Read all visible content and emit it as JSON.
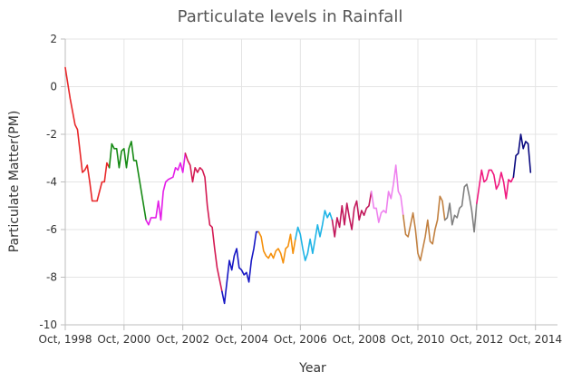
{
  "chart_data": {
    "type": "line",
    "title": "Particulate levels in Rainfall",
    "xlabel": "Year",
    "ylabel": "Particulate Matter(PM)",
    "x_range": [
      "1998-10",
      "2015-07"
    ],
    "ylim": [
      -10,
      2
    ],
    "y_ticks": [
      -10,
      -8,
      -6,
      -4,
      -2,
      0,
      2
    ],
    "x_ticks": [
      {
        "date": "1998-10",
        "label": "Oct, 1998"
      },
      {
        "date": "2000-10",
        "label": "Oct, 2000"
      },
      {
        "date": "2002-10",
        "label": "Oct, 2002"
      },
      {
        "date": "2004-10",
        "label": "Oct, 2004"
      },
      {
        "date": "2006-10",
        "label": "Oct, 2006"
      },
      {
        "date": "2008-10",
        "label": "Oct, 2008"
      },
      {
        "date": "2010-10",
        "label": "Oct, 2010"
      },
      {
        "date": "2012-10",
        "label": "Oct, 2012"
      },
      {
        "date": "2014-10",
        "label": "Oct, 2014"
      }
    ],
    "grid": true,
    "legend": "none",
    "series": [
      {
        "color": "#e8282a",
        "points": [
          [
            "1998-10",
            0.8
          ],
          [
            "1998-12",
            -0.5
          ],
          [
            "1999-02",
            -1.6
          ],
          [
            "1999-03",
            -1.8
          ],
          [
            "1999-05",
            -3.6
          ],
          [
            "1999-06",
            -3.5
          ],
          [
            "1999-07",
            -3.3
          ],
          [
            "1999-08",
            -4.0
          ],
          [
            "1999-09",
            -4.8
          ],
          [
            "1999-11",
            -4.8
          ],
          [
            "2000-01",
            -4.0
          ],
          [
            "2000-02",
            -4.0
          ],
          [
            "2000-03",
            -3.2
          ],
          [
            "2000-04",
            -3.4
          ]
        ]
      },
      {
        "color": "#168a14",
        "points": [
          [
            "2000-04",
            -3.4
          ],
          [
            "2000-05",
            -2.4
          ],
          [
            "2000-06",
            -2.6
          ],
          [
            "2000-07",
            -2.6
          ],
          [
            "2000-08",
            -3.4
          ],
          [
            "2000-09",
            -2.7
          ],
          [
            "2000-10",
            -2.6
          ],
          [
            "2000-11",
            -3.4
          ],
          [
            "2000-12",
            -2.6
          ],
          [
            "2001-01",
            -2.3
          ],
          [
            "2001-02",
            -3.1
          ],
          [
            "2001-03",
            -3.1
          ],
          [
            "2001-07",
            -5.6
          ]
        ]
      },
      {
        "color": "#e41de8",
        "points": [
          [
            "2001-07",
            -5.6
          ],
          [
            "2001-08",
            -5.8
          ],
          [
            "2001-09",
            -5.5
          ],
          [
            "2001-11",
            -5.5
          ],
          [
            "2001-12",
            -4.8
          ],
          [
            "2002-01",
            -5.6
          ],
          [
            "2002-02",
            -4.4
          ],
          [
            "2002-03",
            -4.0
          ],
          [
            "2002-04",
            -3.9
          ],
          [
            "2002-06",
            -3.8
          ],
          [
            "2002-07",
            -3.4
          ],
          [
            "2002-08",
            -3.5
          ],
          [
            "2002-09",
            -3.2
          ],
          [
            "2002-10",
            -3.6
          ],
          [
            "2002-11",
            -2.8
          ]
        ]
      },
      {
        "color": "#d41a53",
        "points": [
          [
            "2002-11",
            -2.8
          ],
          [
            "2002-12",
            -3.1
          ],
          [
            "2003-01",
            -3.3
          ],
          [
            "2003-02",
            -4.0
          ],
          [
            "2003-03",
            -3.4
          ],
          [
            "2003-04",
            -3.6
          ],
          [
            "2003-05",
            -3.4
          ],
          [
            "2003-06",
            -3.5
          ],
          [
            "2003-07",
            -3.8
          ],
          [
            "2003-08",
            -5.0
          ],
          [
            "2003-09",
            -5.8
          ],
          [
            "2003-10",
            -5.9
          ],
          [
            "2003-11",
            -6.8
          ],
          [
            "2003-12",
            -7.6
          ],
          [
            "2004-01",
            -8.1
          ],
          [
            "2004-02",
            -8.6
          ]
        ]
      },
      {
        "color": "#1717c4",
        "points": [
          [
            "2004-02",
            -8.6
          ],
          [
            "2004-03",
            -9.1
          ],
          [
            "2004-04",
            -8.2
          ],
          [
            "2004-05",
            -7.3
          ],
          [
            "2004-06",
            -7.7
          ],
          [
            "2004-07",
            -7.1
          ],
          [
            "2004-08",
            -6.8
          ],
          [
            "2004-09",
            -7.6
          ],
          [
            "2004-10",
            -7.7
          ],
          [
            "2004-11",
            -7.9
          ],
          [
            "2004-12",
            -7.8
          ],
          [
            "2005-01",
            -8.2
          ],
          [
            "2005-02",
            -7.3
          ],
          [
            "2005-03",
            -6.8
          ],
          [
            "2005-04",
            -6.1
          ],
          [
            "2005-05",
            -6.1
          ]
        ]
      },
      {
        "color": "#f5900b",
        "points": [
          [
            "2005-05",
            -6.1
          ],
          [
            "2005-06",
            -6.3
          ],
          [
            "2005-07",
            -6.9
          ],
          [
            "2005-08",
            -7.1
          ],
          [
            "2005-09",
            -7.2
          ],
          [
            "2005-10",
            -7.0
          ],
          [
            "2005-11",
            -7.2
          ],
          [
            "2005-12",
            -6.9
          ],
          [
            "2006-01",
            -6.8
          ],
          [
            "2006-02",
            -7.0
          ],
          [
            "2006-03",
            -7.4
          ],
          [
            "2006-04",
            -6.8
          ],
          [
            "2006-05",
            -6.7
          ],
          [
            "2006-06",
            -6.2
          ],
          [
            "2006-07",
            -7.0
          ],
          [
            "2006-08",
            -6.4
          ]
        ]
      },
      {
        "color": "#1eb4e6",
        "points": [
          [
            "2006-08",
            -6.4
          ],
          [
            "2006-09",
            -5.9
          ],
          [
            "2006-10",
            -6.2
          ],
          [
            "2006-11",
            -6.8
          ],
          [
            "2006-12",
            -7.3
          ],
          [
            "2007-01",
            -7.0
          ],
          [
            "2007-02",
            -6.4
          ],
          [
            "2007-03",
            -7.0
          ],
          [
            "2007-04",
            -6.4
          ],
          [
            "2007-05",
            -5.8
          ],
          [
            "2007-06",
            -6.3
          ],
          [
            "2007-07",
            -5.8
          ],
          [
            "2007-08",
            -5.2
          ],
          [
            "2007-09",
            -5.5
          ],
          [
            "2007-10",
            -5.3
          ],
          [
            "2007-11",
            -5.6
          ]
        ]
      },
      {
        "color": "#c2185b",
        "points": [
          [
            "2007-11",
            -5.6
          ],
          [
            "2007-12",
            -6.3
          ],
          [
            "2008-01",
            -5.5
          ],
          [
            "2008-02",
            -5.9
          ],
          [
            "2008-03",
            -5.0
          ],
          [
            "2008-04",
            -5.8
          ],
          [
            "2008-05",
            -4.9
          ],
          [
            "2008-06",
            -5.5
          ],
          [
            "2008-07",
            -6.0
          ],
          [
            "2008-08",
            -5.1
          ],
          [
            "2008-09",
            -4.8
          ],
          [
            "2008-10",
            -5.6
          ],
          [
            "2008-11",
            -5.2
          ],
          [
            "2008-12",
            -5.4
          ],
          [
            "2009-01",
            -5.1
          ],
          [
            "2009-02",
            -5.0
          ],
          [
            "2009-03",
            -4.4
          ]
        ]
      },
      {
        "color": "#ee82ee",
        "points": [
          [
            "2009-03",
            -4.4
          ],
          [
            "2009-04",
            -5.1
          ],
          [
            "2009-05",
            -5.1
          ],
          [
            "2009-06",
            -5.7
          ],
          [
            "2009-07",
            -5.3
          ],
          [
            "2009-08",
            -5.2
          ],
          [
            "2009-09",
            -5.3
          ],
          [
            "2009-10",
            -4.4
          ],
          [
            "2009-11",
            -4.7
          ],
          [
            "2009-12",
            -4.1
          ],
          [
            "2010-01",
            -3.3
          ],
          [
            "2010-02",
            -4.4
          ],
          [
            "2010-03",
            -4.6
          ],
          [
            "2010-04",
            -5.4
          ]
        ]
      },
      {
        "color": "#c28141",
        "points": [
          [
            "2010-04",
            -5.4
          ],
          [
            "2010-05",
            -6.2
          ],
          [
            "2010-06",
            -6.3
          ],
          [
            "2010-07",
            -5.8
          ],
          [
            "2010-08",
            -5.3
          ],
          [
            "2010-09",
            -6.0
          ],
          [
            "2010-10",
            -7.0
          ],
          [
            "2010-11",
            -7.3
          ],
          [
            "2010-12",
            -6.8
          ],
          [
            "2011-01",
            -6.3
          ],
          [
            "2011-02",
            -5.6
          ],
          [
            "2011-03",
            -6.5
          ],
          [
            "2011-04",
            -6.6
          ],
          [
            "2011-05",
            -6.0
          ],
          [
            "2011-06",
            -5.6
          ],
          [
            "2011-07",
            -4.6
          ],
          [
            "2011-08",
            -4.8
          ],
          [
            "2011-09",
            -5.6
          ]
        ]
      },
      {
        "color": "#7f7f7f",
        "points": [
          [
            "2011-09",
            -5.6
          ],
          [
            "2011-10",
            -5.5
          ],
          [
            "2011-11",
            -4.9
          ],
          [
            "2011-12",
            -5.8
          ],
          [
            "2012-01",
            -5.4
          ],
          [
            "2012-02",
            -5.5
          ],
          [
            "2012-03",
            -5.1
          ],
          [
            "2012-04",
            -5.0
          ],
          [
            "2012-05",
            -4.2
          ],
          [
            "2012-06",
            -4.1
          ],
          [
            "2012-07",
            -4.6
          ],
          [
            "2012-08",
            -5.2
          ],
          [
            "2012-09",
            -6.1
          ],
          [
            "2012-10",
            -4.9
          ]
        ]
      },
      {
        "color": "#f0197f",
        "points": [
          [
            "2012-10",
            -4.9
          ],
          [
            "2012-11",
            -4.2
          ],
          [
            "2012-12",
            -3.5
          ],
          [
            "2013-01",
            -4.0
          ],
          [
            "2013-02",
            -3.9
          ],
          [
            "2013-03",
            -3.5
          ],
          [
            "2013-04",
            -3.5
          ],
          [
            "2013-05",
            -3.7
          ],
          [
            "2013-06",
            -4.3
          ],
          [
            "2013-07",
            -4.1
          ],
          [
            "2013-08",
            -3.6
          ],
          [
            "2013-09",
            -4.0
          ],
          [
            "2013-10",
            -4.7
          ],
          [
            "2013-11",
            -3.9
          ],
          [
            "2013-12",
            -4.0
          ],
          [
            "2014-01",
            -3.8
          ]
        ]
      },
      {
        "color": "#0a0a80",
        "points": [
          [
            "2014-01",
            -3.8
          ],
          [
            "2014-02",
            -2.9
          ],
          [
            "2014-03",
            -2.8
          ],
          [
            "2014-04",
            -2.0
          ],
          [
            "2014-05",
            -2.6
          ],
          [
            "2014-06",
            -2.3
          ],
          [
            "2014-07",
            -2.4
          ],
          [
            "2014-08",
            -3.6
          ]
        ]
      }
    ]
  }
}
